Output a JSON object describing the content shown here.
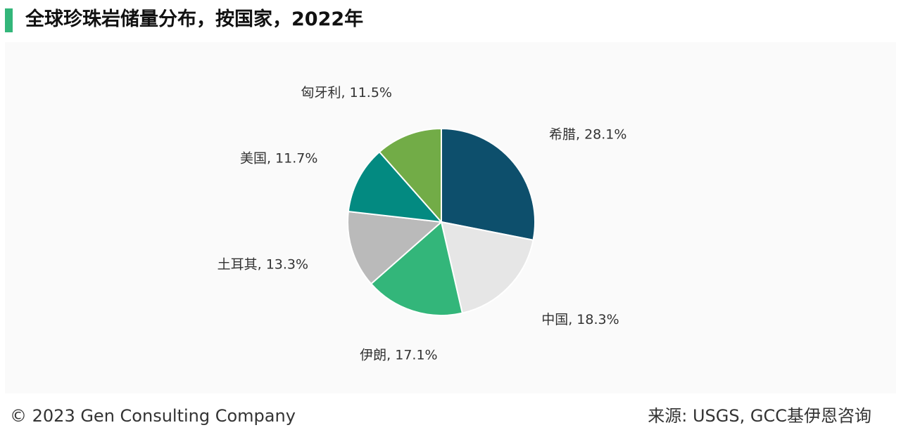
{
  "header": {
    "title": "全球珍珠岩储量分布，按国家，2022年",
    "accent_color": "#33b67a"
  },
  "plot": {
    "background": "#fafafa"
  },
  "chart_data": {
    "type": "pie",
    "title": "全球珍珠岩储量分布，按国家，2022年",
    "start_angle_deg": 0,
    "direction": "clockwise",
    "slices": [
      {
        "label": "希腊",
        "value": 28.1,
        "text": "希腊, 28.1%",
        "color": "#0d4f6c"
      },
      {
        "label": "中国",
        "value": 18.3,
        "text": "中国, 18.3%",
        "color": "#e6e6e6"
      },
      {
        "label": "伊朗",
        "value": 17.1,
        "text": "伊朗, 17.1%",
        "color": "#33b67a"
      },
      {
        "label": "土耳其",
        "value": 13.3,
        "text": "土耳其, 13.3%",
        "color": "#bababa"
      },
      {
        "label": "美国",
        "value": 11.7,
        "text": "美国, 11.7%",
        "color": "#038a81"
      },
      {
        "label": "匈牙利",
        "value": 11.5,
        "text": "匈牙利, 11.5%",
        "color": "#72ac47"
      }
    ]
  },
  "footer": {
    "copyright": "© 2023 Gen Consulting Company",
    "source": "来源: USGS, GCC基伊恩咨询"
  }
}
